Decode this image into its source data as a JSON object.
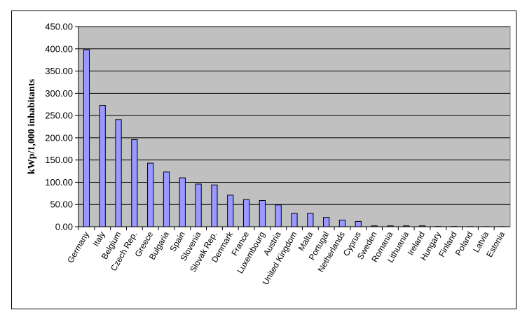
{
  "chart_data": {
    "type": "bar",
    "title": "",
    "xlabel": "",
    "ylabel": "kWp/1,000 inhabitants",
    "ylim": [
      0,
      450
    ],
    "y_ticks": [
      "0.00",
      "50.00",
      "100.00",
      "150.00",
      "200.00",
      "250.00",
      "300.00",
      "350.00",
      "400.00",
      "450.00"
    ],
    "grid": true,
    "legend": "none",
    "categories": [
      "Germany",
      "Italy",
      "Belgium",
      "Czech Rep.",
      "Greece",
      "Bulgaria",
      "Spain",
      "Slovenia",
      "Slovak Rep.",
      "Denmark",
      "France",
      "Luxembourg",
      "Austria",
      "United Kingdom",
      "Malta",
      "Portugal",
      "Netherlands",
      "Cyprus",
      "Sweden",
      "Romania",
      "Lithuania",
      "Ireland",
      "Hungary",
      "Finland",
      "Poland",
      "Latvia",
      "Estonia"
    ],
    "values": [
      398,
      273,
      241,
      196,
      143,
      123,
      110,
      96,
      94,
      71,
      61,
      59,
      49,
      30,
      30,
      21,
      15,
      12,
      2,
      2,
      2,
      2,
      0.5,
      0.5,
      0.3,
      0.2,
      0.2
    ],
    "colors": {
      "bar_fill": "#9999ff",
      "bar_stroke": "#000000",
      "plot_background": "#c0c0c0",
      "gridline": "#000000"
    }
  }
}
